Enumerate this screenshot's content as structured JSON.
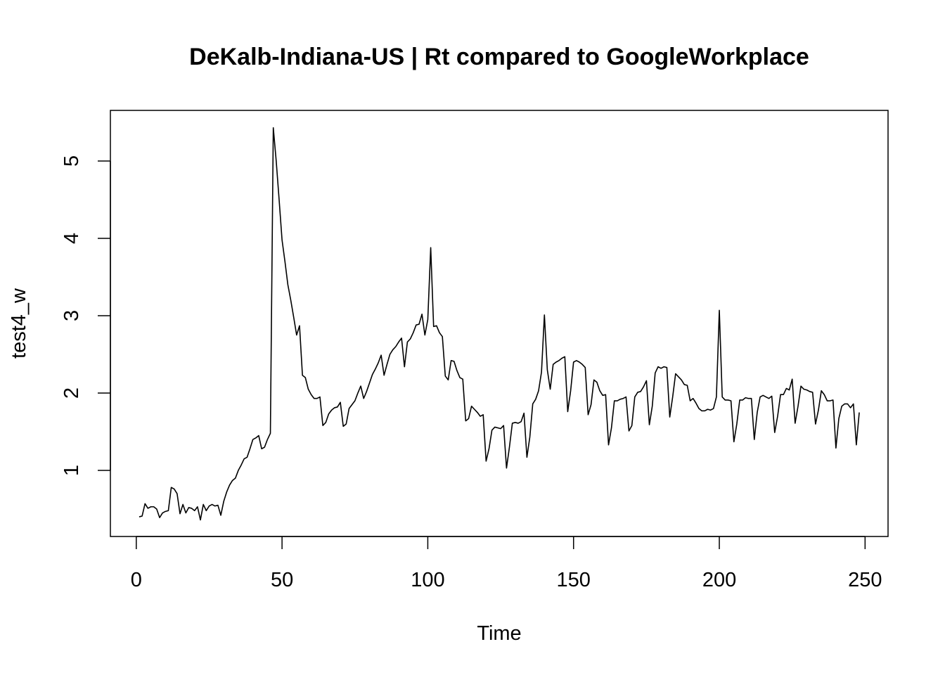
{
  "chart_data": {
    "type": "line",
    "title": "DeKalb-Indiana-US | Rt compared to GoogleWorkplace",
    "xlabel": "Time",
    "ylabel": "test4_w",
    "xlim": [
      1,
      248
    ],
    "ylim": [
      0.35,
      5.45
    ],
    "x_ticks": [
      0,
      50,
      100,
      150,
      200,
      250
    ],
    "y_ticks": [
      1,
      2,
      3,
      4,
      5
    ],
    "grid": false,
    "legend": "none",
    "line_color": "#000000",
    "series": [
      {
        "x_start": 1,
        "values": [
          0.4,
          0.41,
          0.57,
          0.51,
          0.53,
          0.53,
          0.5,
          0.39,
          0.45,
          0.47,
          0.48,
          0.78,
          0.76,
          0.7,
          0.44,
          0.56,
          0.45,
          0.52,
          0.51,
          0.48,
          0.53,
          0.36,
          0.56,
          0.48,
          0.54,
          0.56,
          0.54,
          0.55,
          0.42,
          0.6,
          0.72,
          0.81,
          0.87,
          0.9,
          1.0,
          1.07,
          1.15,
          1.17,
          1.28,
          1.4,
          1.42,
          1.45,
          1.28,
          1.3,
          1.4,
          1.48,
          5.43,
          5.0,
          4.5,
          3.98,
          3.7,
          3.4,
          3.2,
          2.98,
          2.75,
          2.87,
          2.23,
          2.2,
          2.05,
          1.98,
          1.93,
          1.93,
          1.95,
          1.58,
          1.62,
          1.73,
          1.78,
          1.81,
          1.82,
          1.88,
          1.57,
          1.6,
          1.8,
          1.85,
          1.9,
          2.0,
          2.09,
          1.93,
          2.02,
          2.13,
          2.24,
          2.31,
          2.39,
          2.49,
          2.23,
          2.37,
          2.5,
          2.56,
          2.6,
          2.66,
          2.71,
          2.34,
          2.66,
          2.7,
          2.78,
          2.88,
          2.89,
          3.02,
          2.75,
          2.95,
          3.88,
          2.86,
          2.87,
          2.78,
          2.73,
          2.22,
          2.17,
          2.42,
          2.41,
          2.29,
          2.2,
          2.18,
          1.64,
          1.67,
          1.83,
          1.79,
          1.75,
          1.7,
          1.72,
          1.12,
          1.28,
          1.52,
          1.56,
          1.55,
          1.54,
          1.58,
          1.03,
          1.3,
          1.61,
          1.62,
          1.61,
          1.63,
          1.74,
          1.17,
          1.43,
          1.86,
          1.92,
          2.03,
          2.27,
          3.01,
          2.3,
          2.05,
          2.37,
          2.4,
          2.42,
          2.45,
          2.47,
          1.76,
          2.03,
          2.4,
          2.42,
          2.4,
          2.37,
          2.33,
          1.72,
          1.85,
          2.17,
          2.14,
          2.03,
          1.97,
          1.98,
          1.33,
          1.55,
          1.9,
          1.9,
          1.92,
          1.93,
          1.95,
          1.51,
          1.58,
          1.95,
          2.01,
          2.02,
          2.08,
          2.16,
          1.59,
          1.83,
          2.26,
          2.34,
          2.32,
          2.34,
          2.33,
          1.69,
          1.95,
          2.25,
          2.21,
          2.17,
          2.11,
          2.1,
          1.9,
          1.93,
          1.87,
          1.8,
          1.77,
          1.77,
          1.79,
          1.78,
          1.8,
          1.95,
          3.07,
          1.95,
          1.91,
          1.91,
          1.9,
          1.37,
          1.6,
          1.91,
          1.91,
          1.94,
          1.93,
          1.93,
          1.4,
          1.75,
          1.95,
          1.97,
          1.95,
          1.93,
          1.96,
          1.49,
          1.7,
          1.98,
          1.98,
          2.06,
          2.04,
          2.18,
          1.61,
          1.83,
          2.09,
          2.05,
          2.04,
          2.02,
          2.01,
          1.6,
          1.78,
          2.03,
          1.98,
          1.9,
          1.9,
          1.91,
          1.29,
          1.67,
          1.83,
          1.86,
          1.86,
          1.81,
          1.86,
          1.33,
          1.75
        ]
      }
    ]
  }
}
